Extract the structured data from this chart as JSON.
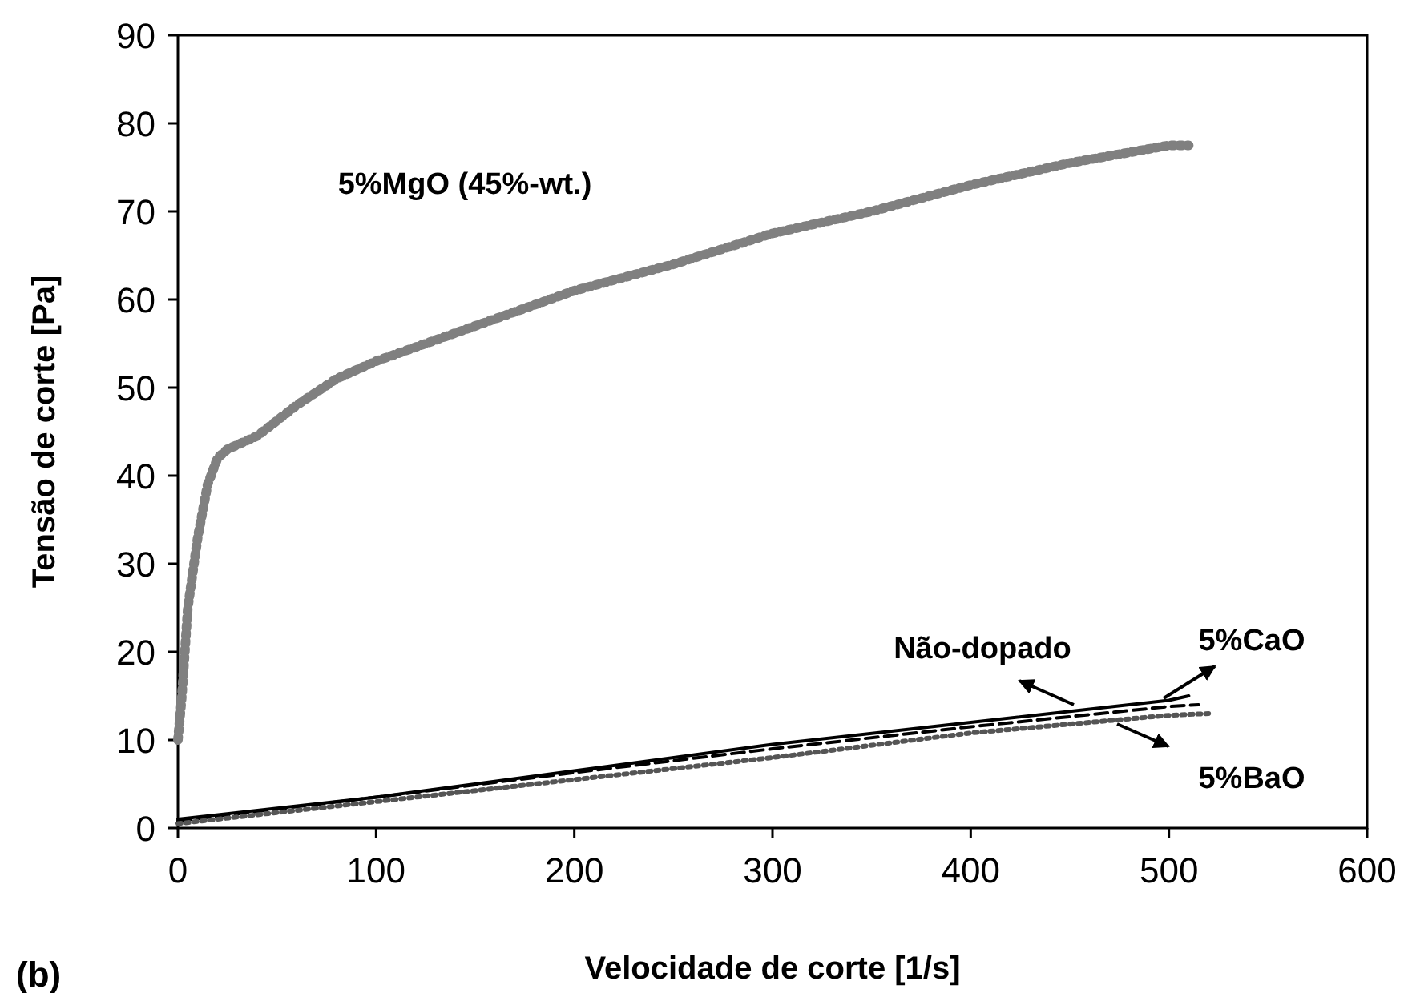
{
  "chart_data": {
    "type": "line",
    "xlabel": "Velocidade de corte [1/s]",
    "ylabel": "Tensão de corte [Pa]",
    "xlim": [
      0,
      600
    ],
    "xticks": [
      0,
      100,
      200,
      300,
      400,
      500,
      600
    ],
    "ylim": [
      0,
      90
    ],
    "yticks": [
      0,
      10,
      20,
      30,
      40,
      50,
      60,
      70,
      80,
      90
    ],
    "grid": false,
    "marker": "none",
    "annotations": [
      "(b)"
    ],
    "series": [
      {
        "name": "5%MgO (45%-wt.)",
        "color": "#808080",
        "line_style": "dotted",
        "x": [
          0,
          2,
          5,
          10,
          15,
          20,
          25,
          40,
          60,
          80,
          100,
          150,
          200,
          250,
          300,
          350,
          400,
          450,
          500,
          510
        ],
        "values": [
          10,
          15,
          25,
          33,
          39,
          42,
          43,
          44.5,
          48,
          51,
          53,
          57,
          61,
          64,
          67.5,
          70,
          73,
          75.5,
          77.5,
          77.5
        ]
      },
      {
        "name": "Não-dopado",
        "color": "#000000",
        "line_style": "solid",
        "x": [
          0,
          100,
          200,
          300,
          400,
          500,
          510
        ],
        "values": [
          1,
          3.5,
          6.5,
          9.5,
          12,
          14.5,
          15
        ]
      },
      {
        "name": "5%CaO",
        "color": "#000000",
        "line_style": "dashed",
        "x": [
          0,
          100,
          200,
          300,
          400,
          500,
          515
        ],
        "values": [
          0.8,
          3.5,
          6.3,
          9,
          11.5,
          13.8,
          14
        ]
      },
      {
        "name": "5%BaO",
        "color": "#555555",
        "line_style": "dotted",
        "x": [
          0,
          100,
          200,
          300,
          400,
          500,
          520
        ],
        "values": [
          0.5,
          3,
          5.5,
          8,
          10.8,
          12.8,
          13
        ]
      }
    ]
  }
}
